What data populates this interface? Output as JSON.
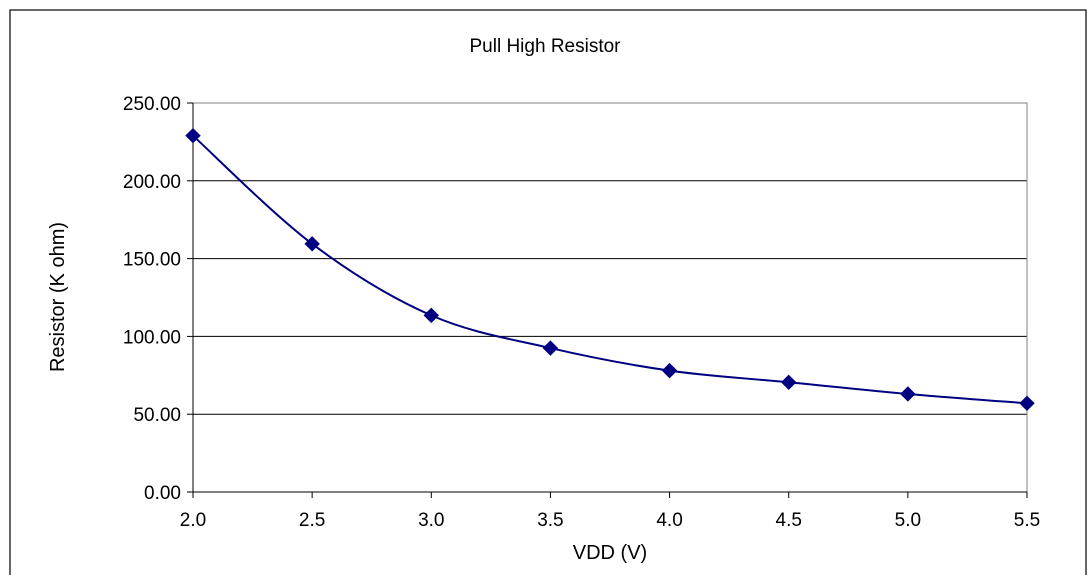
{
  "chart_data": {
    "type": "line",
    "title": "Pull High Resistor",
    "xlabel": "VDD (V)",
    "ylabel": "Resistor (K ohm)",
    "x_ticks": [
      "2.0",
      "2.5",
      "3.0",
      "3.5",
      "4.0",
      "4.5",
      "5.0",
      "5.5"
    ],
    "y_ticks": [
      "0.00",
      "50.00",
      "100.00",
      "150.00",
      "200.00",
      "250.00"
    ],
    "xlim": [
      2.0,
      5.5
    ],
    "ylim": [
      0,
      250
    ],
    "grid": "horizontal",
    "legend": "none",
    "series": [
      {
        "x": [
          2.0,
          2.5,
          3.0,
          3.5,
          4.0,
          4.5,
          5.0,
          5.5
        ],
        "values": [
          229,
          159.5,
          113.5,
          92.5,
          78,
          70.5,
          63,
          57
        ],
        "color": "#000080",
        "marker": "diamond"
      }
    ]
  }
}
